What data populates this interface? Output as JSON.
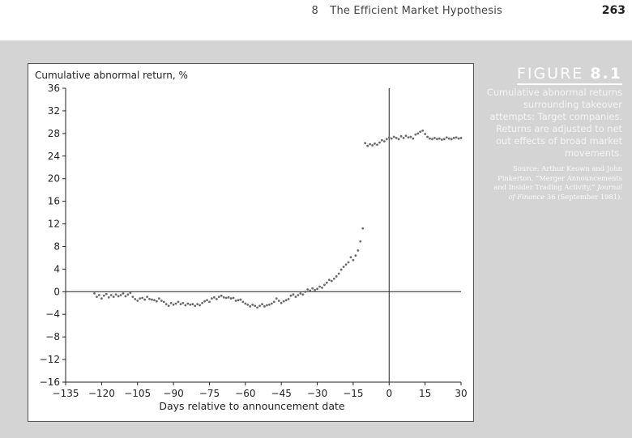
{
  "header": {
    "chapter_number": "8",
    "chapter_title": "The Efficient Market Hypothesis",
    "page_number": "263"
  },
  "figure": {
    "label_prefix": "FIGURE",
    "label_number": "8.1",
    "caption": "Cumulative abnormal returns surrounding takeover attempts: Target companies. Returns are adjusted to net out effects of broad market movements.",
    "source_prefix": "Source: Arthur Keown and John Pinkerton, “Merger Announcements and Insider Trading Activity,”",
    "source_journal": "Journal of Finance",
    "source_suffix": "36 (September 1981)."
  },
  "chart_data": {
    "type": "scatter",
    "title": "",
    "ylabel": "Cumulative abnormal return, %",
    "xlabel": "Days relative to announcement date",
    "xlim": [
      -135,
      30
    ],
    "ylim": [
      -16,
      36
    ],
    "x_ticks": [
      -135,
      -120,
      -105,
      -90,
      -75,
      -60,
      -45,
      -30,
      -15,
      0,
      15,
      30
    ],
    "y_ticks": [
      -16,
      -12,
      -8,
      -4,
      0,
      4,
      8,
      12,
      16,
      20,
      24,
      28,
      32,
      36
    ],
    "grid": false,
    "reference_lines": {
      "horizontal_at_y": 0,
      "vertical_at_x": 0
    },
    "point_color": "#6a6a6a",
    "series": [
      {
        "x": [
          -123,
          -122,
          -121,
          -120,
          -119,
          -118,
          -117,
          -116,
          -115,
          -114,
          -113,
          -112,
          -111,
          -110,
          -109,
          -108,
          -107,
          -106,
          -105,
          -104,
          -103,
          -102,
          -101,
          -100,
          -99,
          -98,
          -97,
          -96,
          -95,
          -94,
          -93,
          -92,
          -91,
          -90,
          -89,
          -88,
          -87,
          -86,
          -85,
          -84,
          -83,
          -82,
          -81,
          -80,
          -79,
          -78,
          -77,
          -76,
          -75,
          -74,
          -73,
          -72,
          -71,
          -70,
          -69,
          -68,
          -67,
          -66,
          -65,
          -64,
          -63,
          -62,
          -61,
          -60,
          -59,
          -58,
          -57,
          -56,
          -55,
          -54,
          -53,
          -52,
          -51,
          -50,
          -49,
          -48,
          -47,
          -46,
          -45,
          -44,
          -43,
          -42,
          -41,
          -40,
          -39,
          -38,
          -37,
          -36,
          -35,
          -34,
          -33,
          -32,
          -31,
          -30,
          -29,
          -28,
          -27,
          -26,
          -25,
          -24,
          -23,
          -22,
          -21,
          -20,
          -19,
          -18,
          -17,
          -16,
          -15,
          -14,
          -13,
          -12,
          -11,
          -10,
          -9,
          -8,
          -7,
          -6,
          -5,
          -4,
          -3,
          -2,
          -1,
          0,
          1,
          2,
          3,
          4,
          5,
          6,
          7,
          8,
          9,
          10,
          11,
          12,
          13,
          14,
          15,
          16,
          17,
          18,
          19,
          20,
          21,
          22,
          23,
          24,
          25,
          26,
          27,
          28,
          29,
          30
        ],
        "y": [
          -0.3,
          -0.9,
          -0.6,
          -1.2,
          -0.7,
          -0.4,
          -1.0,
          -0.6,
          -0.9,
          -0.5,
          -0.8,
          -0.6,
          -0.3,
          -0.8,
          -0.5,
          -0.2,
          -0.9,
          -1.3,
          -1.6,
          -1.2,
          -1.1,
          -1.4,
          -0.9,
          -1.3,
          -1.4,
          -1.5,
          -1.7,
          -1.2,
          -1.6,
          -1.8,
          -2.2,
          -2.5,
          -2.0,
          -2.3,
          -2.1,
          -1.8,
          -2.2,
          -2.0,
          -2.4,
          -2.1,
          -2.3,
          -2.2,
          -2.5,
          -2.2,
          -2.4,
          -2.0,
          -1.7,
          -1.5,
          -1.8,
          -1.2,
          -1.0,
          -1.3,
          -0.9,
          -0.7,
          -1.0,
          -1.1,
          -1.0,
          -1.2,
          -1.1,
          -1.6,
          -1.5,
          -1.4,
          -1.8,
          -2.1,
          -2.3,
          -2.6,
          -2.3,
          -2.5,
          -2.8,
          -2.5,
          -2.2,
          -2.6,
          -2.4,
          -2.3,
          -2.1,
          -1.8,
          -1.2,
          -1.6,
          -2.0,
          -1.7,
          -1.5,
          -1.3,
          -0.7,
          -0.5,
          -0.9,
          -0.6,
          -0.3,
          -0.5,
          0.0,
          0.4,
          0.2,
          0.6,
          0.3,
          0.5,
          0.9,
          0.7,
          1.2,
          1.6,
          2.1,
          1.9,
          2.3,
          2.7,
          3.2,
          3.9,
          4.4,
          4.8,
          5.2,
          6.1,
          5.6,
          6.4,
          7.3,
          8.9,
          11.2,
          26.3,
          25.8,
          26.1,
          25.9,
          26.2,
          26.0,
          26.4,
          26.8,
          26.6,
          27.0,
          27.3,
          27.1,
          27.4,
          27.2,
          27.0,
          27.5,
          27.2,
          27.6,
          27.3,
          27.4,
          27.1,
          27.8,
          28.0,
          28.3,
          28.5,
          27.9,
          27.4,
          27.1,
          27.0,
          27.2,
          27.0,
          27.1,
          26.9,
          27.0,
          27.3,
          27.1,
          27.0,
          27.2,
          27.3,
          27.1,
          27.2
        ],
        "y_comment": ""
      }
    ]
  }
}
